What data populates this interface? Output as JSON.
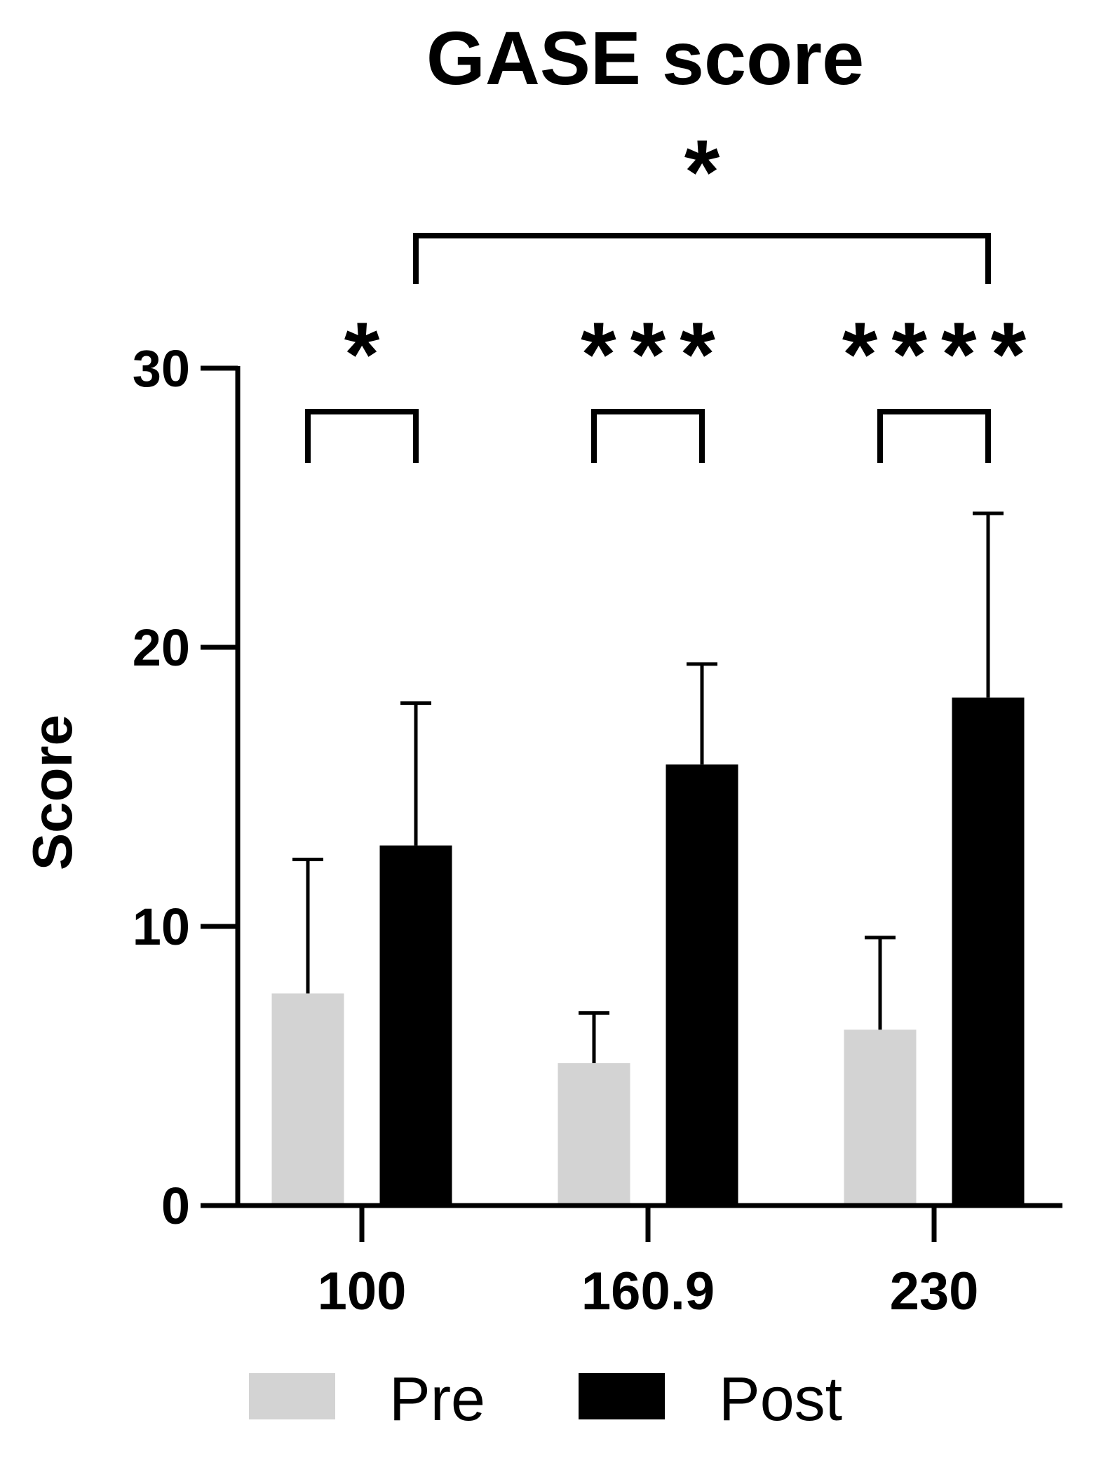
{
  "chart_data": {
    "type": "bar",
    "title": "GASE score",
    "xlabel": "",
    "ylabel": "Score",
    "categories": [
      "100",
      "160.9",
      "230"
    ],
    "series": [
      {
        "name": "Pre",
        "values": [
          7.6,
          5.1,
          6.3
        ],
        "errors": [
          4.8,
          1.8,
          3.3
        ],
        "color": "#d3d3d3"
      },
      {
        "name": "Post",
        "values": [
          12.9,
          15.8,
          18.2
        ],
        "errors": [
          5.1,
          3.6,
          6.6
        ],
        "color": "#000000"
      }
    ],
    "ylim": [
      0,
      30
    ],
    "yticks": [
      0,
      10,
      20,
      30
    ],
    "grid": false,
    "legend_position": "bottom",
    "annotations": [
      {
        "type": "bracket",
        "from": "100 Pre",
        "to": "100 Post",
        "label": "*"
      },
      {
        "type": "bracket",
        "from": "160.9 Pre",
        "to": "160.9 Post",
        "label": "***"
      },
      {
        "type": "bracket",
        "from": "230 Pre",
        "to": "230 Post",
        "label": "****"
      },
      {
        "type": "bracket",
        "from": "100 Post",
        "to": "230 Post",
        "label": "*"
      }
    ]
  }
}
